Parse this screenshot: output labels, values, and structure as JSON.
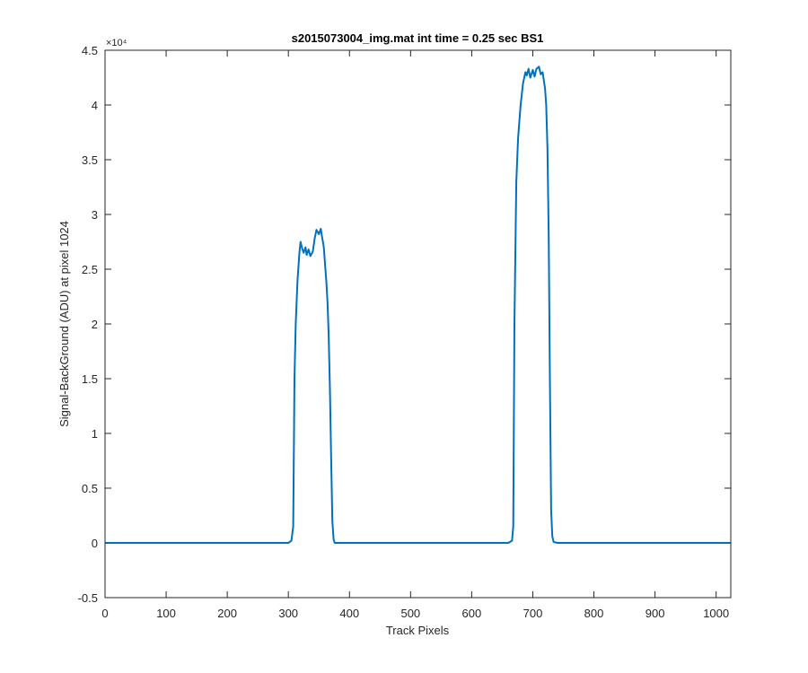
{
  "chart_data": {
    "type": "line",
    "title": "s2015073004_img.mat int time = 0.25 sec   BS1",
    "xlabel": "Track Pixels",
    "ylabel": "Signal-BackGround (ADU) at pixel 1024",
    "y_multiplier_label": "×10⁴",
    "xlim": [
      0,
      1024
    ],
    "ylim": [
      -5000,
      45000
    ],
    "x_ticks": [
      0,
      100,
      200,
      300,
      400,
      500,
      600,
      700,
      800,
      900,
      1000
    ],
    "x_tick_labels": [
      "0",
      "100",
      "200",
      "300",
      "400",
      "500",
      "600",
      "700",
      "800",
      "900",
      "1000"
    ],
    "y_ticks": [
      -5000,
      0,
      5000,
      10000,
      15000,
      20000,
      25000,
      30000,
      35000,
      40000,
      45000
    ],
    "y_tick_labels": [
      "-0.5",
      "0",
      "0.5",
      "1",
      "1.5",
      "2",
      "2.5",
      "3",
      "3.5",
      "4",
      "4.5"
    ],
    "grid": false,
    "line_color": "#0072BD",
    "series": [
      {
        "x": [
          0,
          300,
          305,
          308,
          310,
          312,
          315,
          318,
          320,
          322,
          325,
          328,
          330,
          333,
          336,
          340,
          343,
          346,
          350,
          353,
          355,
          358,
          360,
          362,
          364,
          366,
          368,
          370,
          372,
          374,
          376,
          380,
          660,
          666,
          668,
          670,
          673,
          676,
          680,
          684,
          688,
          690,
          693,
          696,
          700,
          703,
          706,
          710,
          713,
          716,
          720,
          722,
          724,
          726,
          728,
          730,
          732,
          734,
          740,
          1024
        ],
        "y": [
          0,
          0,
          200,
          1500,
          15000,
          20000,
          24000,
          26500,
          27500,
          27000,
          26500,
          27000,
          26300,
          26800,
          26200,
          26600,
          27800,
          28600,
          28200,
          28700,
          28000,
          27000,
          25500,
          24000,
          22000,
          19000,
          14000,
          8000,
          2000,
          300,
          0,
          0,
          0,
          200,
          1500,
          20000,
          33000,
          37000,
          40000,
          42000,
          43000,
          42700,
          43300,
          42500,
          43200,
          42600,
          43300,
          43500,
          42800,
          43000,
          41500,
          40000,
          36000,
          28000,
          15000,
          3000,
          600,
          100,
          0,
          0
        ]
      }
    ]
  }
}
